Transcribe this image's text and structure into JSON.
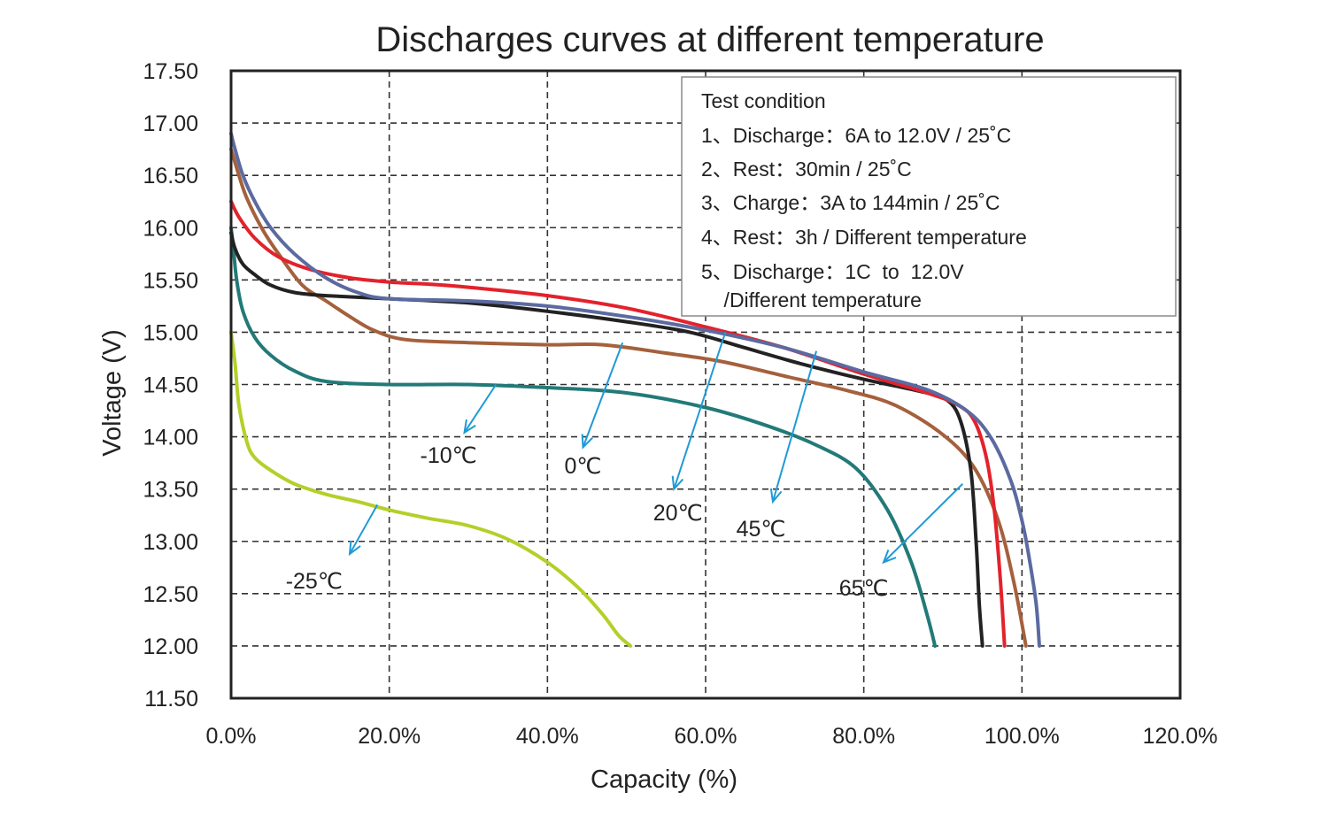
{
  "chart_data": {
    "type": "line",
    "title": "Discharges curves at different temperature",
    "xlabel": "Capacity (%)",
    "ylabel": "Voltage (V)",
    "xlim": [
      0,
      120
    ],
    "ylim": [
      11.5,
      17.5
    ],
    "grid": true,
    "x_ticks": [
      0,
      20,
      40,
      60,
      80,
      100,
      120
    ],
    "x_tick_labels": [
      "0.0%",
      "20.0%",
      "40.0%",
      "60.0%",
      "80.0%",
      "100.0%",
      "120.0%"
    ],
    "y_ticks": [
      11.5,
      12,
      12.5,
      13,
      13.5,
      14,
      14.5,
      15,
      15.5,
      16,
      16.5,
      17,
      17.5
    ],
    "y_tick_labels": [
      "11.50",
      "12.00",
      "12.50",
      "13.00",
      "13.50",
      "14.00",
      "14.50",
      "15.00",
      "15.50",
      "16.00",
      "16.50",
      "17.00",
      "17.50"
    ],
    "series": [
      {
        "color": "#b5cf2a",
        "x": [
          0,
          0.5,
          1,
          2,
          3,
          5,
          8,
          12,
          16,
          20,
          25,
          30,
          35,
          40,
          44,
          47,
          49,
          50.5
        ],
        "y": [
          15.0,
          14.7,
          14.3,
          13.95,
          13.8,
          13.68,
          13.55,
          13.45,
          13.38,
          13.3,
          13.22,
          13.15,
          13.02,
          12.8,
          12.55,
          12.3,
          12.1,
          12.0
        ]
      },
      {
        "color": "#227a78",
        "x": [
          0,
          0.3,
          0.7,
          1.5,
          3,
          5,
          8,
          12,
          20,
          30,
          40,
          50,
          60,
          68,
          74,
          79,
          83,
          86,
          88,
          89
        ],
        "y": [
          16.0,
          15.8,
          15.5,
          15.2,
          14.95,
          14.78,
          14.63,
          14.53,
          14.5,
          14.5,
          14.47,
          14.42,
          14.28,
          14.1,
          13.92,
          13.7,
          13.3,
          12.8,
          12.3,
          12.0
        ]
      },
      {
        "color": "#a5603c",
        "x": [
          0,
          1,
          2,
          4,
          6,
          9,
          12,
          15,
          18,
          22,
          30,
          40,
          47,
          55,
          62,
          70,
          78,
          84,
          90,
          94,
          97,
          99,
          100.5
        ],
        "y": [
          16.75,
          16.5,
          16.28,
          15.98,
          15.75,
          15.45,
          15.3,
          15.15,
          15.02,
          14.93,
          14.9,
          14.88,
          14.88,
          14.8,
          14.72,
          14.58,
          14.44,
          14.3,
          14.02,
          13.7,
          13.2,
          12.6,
          12.0
        ]
      },
      {
        "color": "#222222",
        "x": [
          0,
          0.5,
          1.5,
          3,
          5,
          8,
          12,
          20,
          30,
          40,
          50,
          58,
          65,
          72,
          80,
          85,
          88,
          90,
          92,
          93.5,
          94.2,
          94.6,
          95
        ],
        "y": [
          15.95,
          15.8,
          15.65,
          15.55,
          15.45,
          15.38,
          15.35,
          15.32,
          15.28,
          15.2,
          15.1,
          15.0,
          14.85,
          14.7,
          14.55,
          14.47,
          14.42,
          14.38,
          14.2,
          13.7,
          13.0,
          12.4,
          12.0
        ]
      },
      {
        "color": "#e3222c",
        "x": [
          0,
          1,
          3,
          6,
          10,
          15,
          20,
          25,
          30,
          40,
          50,
          60,
          70,
          80,
          88,
          92,
          94,
          95.5,
          96.5,
          97.3,
          97.8
        ],
        "y": [
          16.25,
          16.1,
          15.9,
          15.72,
          15.6,
          15.52,
          15.48,
          15.46,
          15.43,
          15.35,
          15.23,
          15.05,
          14.85,
          14.6,
          14.42,
          14.3,
          14.15,
          13.8,
          13.3,
          12.6,
          12.0
        ]
      },
      {
        "color": "#5b6aa0",
        "x": [
          0,
          0.5,
          1.5,
          3,
          5,
          8,
          12,
          16,
          20,
          30,
          40,
          50,
          60,
          70,
          80,
          88,
          93,
          96,
          98.5,
          100,
          101,
          101.8,
          102.2
        ],
        "y": [
          16.9,
          16.75,
          16.5,
          16.25,
          16.0,
          15.75,
          15.52,
          15.38,
          15.32,
          15.3,
          15.25,
          15.15,
          15.02,
          14.85,
          14.62,
          14.45,
          14.25,
          14.0,
          13.6,
          13.2,
          12.8,
          12.4,
          12.0
        ]
      }
    ],
    "annotations": [
      {
        "text": "-25℃",
        "x": 10.5,
        "y": 12.55
      },
      {
        "text": "-10℃",
        "x": 27.5,
        "y": 13.75
      },
      {
        "text": "0℃",
        "x": 44.5,
        "y": 13.65
      },
      {
        "text": "20℃",
        "x": 56.5,
        "y": 13.2
      },
      {
        "text": "45℃",
        "x": 67,
        "y": 13.05
      },
      {
        "text": "65℃",
        "x": 80,
        "y": 12.48
      }
    ],
    "arrows": [
      {
        "color": "#1f9ad6",
        "from": [
          18.5,
          13.35
        ],
        "to": [
          15,
          12.88
        ]
      },
      {
        "color": "#1f9ad6",
        "from": [
          33.5,
          14.5
        ],
        "to": [
          29.5,
          14.04
        ]
      },
      {
        "color": "#1f9ad6",
        "from": [
          49.5,
          14.9
        ],
        "to": [
          44.5,
          13.9
        ]
      },
      {
        "color": "#1f9ad6",
        "from": [
          62.5,
          15.0
        ],
        "to": [
          56,
          13.5
        ]
      },
      {
        "color": "#1f9ad6",
        "from": [
          74,
          14.82
        ],
        "to": [
          68.5,
          13.38
        ]
      },
      {
        "color": "#1f9ad6",
        "from": [
          92.5,
          13.55
        ],
        "to": [
          82.5,
          12.8
        ]
      }
    ],
    "legend": {
      "placement": "top-right",
      "lines": [
        "Test condition",
        "1、Discharge：6A to 12.0V / 25˚C",
        "2、Rest：30min / 25˚C",
        "3、Charge：3A to 144min / 25˚C",
        "4、Rest：3h / Different temperature",
        "5、Discharge：1C  to  12.0V",
        "    /Different temperature"
      ]
    }
  }
}
